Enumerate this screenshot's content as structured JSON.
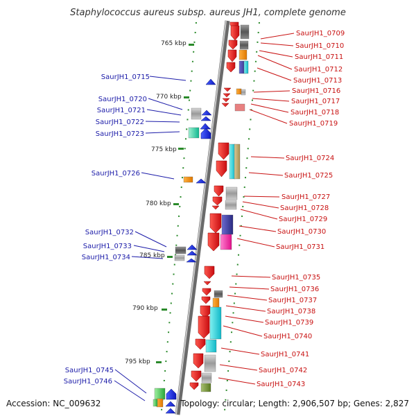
{
  "title": "Staphylococcus aureus subsp. aureus JH1, complete genome",
  "footer": {
    "accession": "Accession: NC_009632",
    "topology": "Topology: circular; Length: 2,906,507 bp; Genes: 2,827"
  },
  "ruler": [
    "765 kbp",
    "770 kbp",
    "775 kbp",
    "780 kbp",
    "785 kbp",
    "790 kbp",
    "795 kbp"
  ],
  "left_genes": [
    "SaurJH1_0715",
    "SaurJH1_0720",
    "SaurJH1_0721",
    "SaurJH1_0722",
    "SaurJH1_0723",
    "SaurJH1_0726",
    "SaurJH1_0732",
    "SaurJH1_0733",
    "SaurJH1_0734",
    "SaurJH1_0745",
    "SaurJH1_0746"
  ],
  "right_genes": [
    "SaurJH1_0709",
    "SaurJH1_0710",
    "SaurJH1_0711",
    "SaurJH1_0712",
    "SaurJH1_0713",
    "SaurJH1_0716",
    "SaurJH1_0717",
    "SaurJH1_0718",
    "SaurJH1_0719",
    "SaurJH1_0724",
    "SaurJH1_0725",
    "SaurJH1_0727",
    "SaurJH1_0728",
    "SaurJH1_0729",
    "SaurJH1_0730",
    "SaurJH1_0731",
    "SaurJH1_0735",
    "SaurJH1_0736",
    "SaurJH1_0737",
    "SaurJH1_0738",
    "SaurJH1_0739",
    "SaurJH1_0740",
    "SaurJH1_0741",
    "SaurJH1_0742",
    "SaurJH1_0743"
  ],
  "colors": {
    "forward_strand": "#e8141a",
    "reverse_strand": "#1020e0",
    "left_label": "#1a1aa8",
    "right_label": "#c81010",
    "backbone": "#8a8a8a",
    "tick": "#2a8a2a"
  }
}
